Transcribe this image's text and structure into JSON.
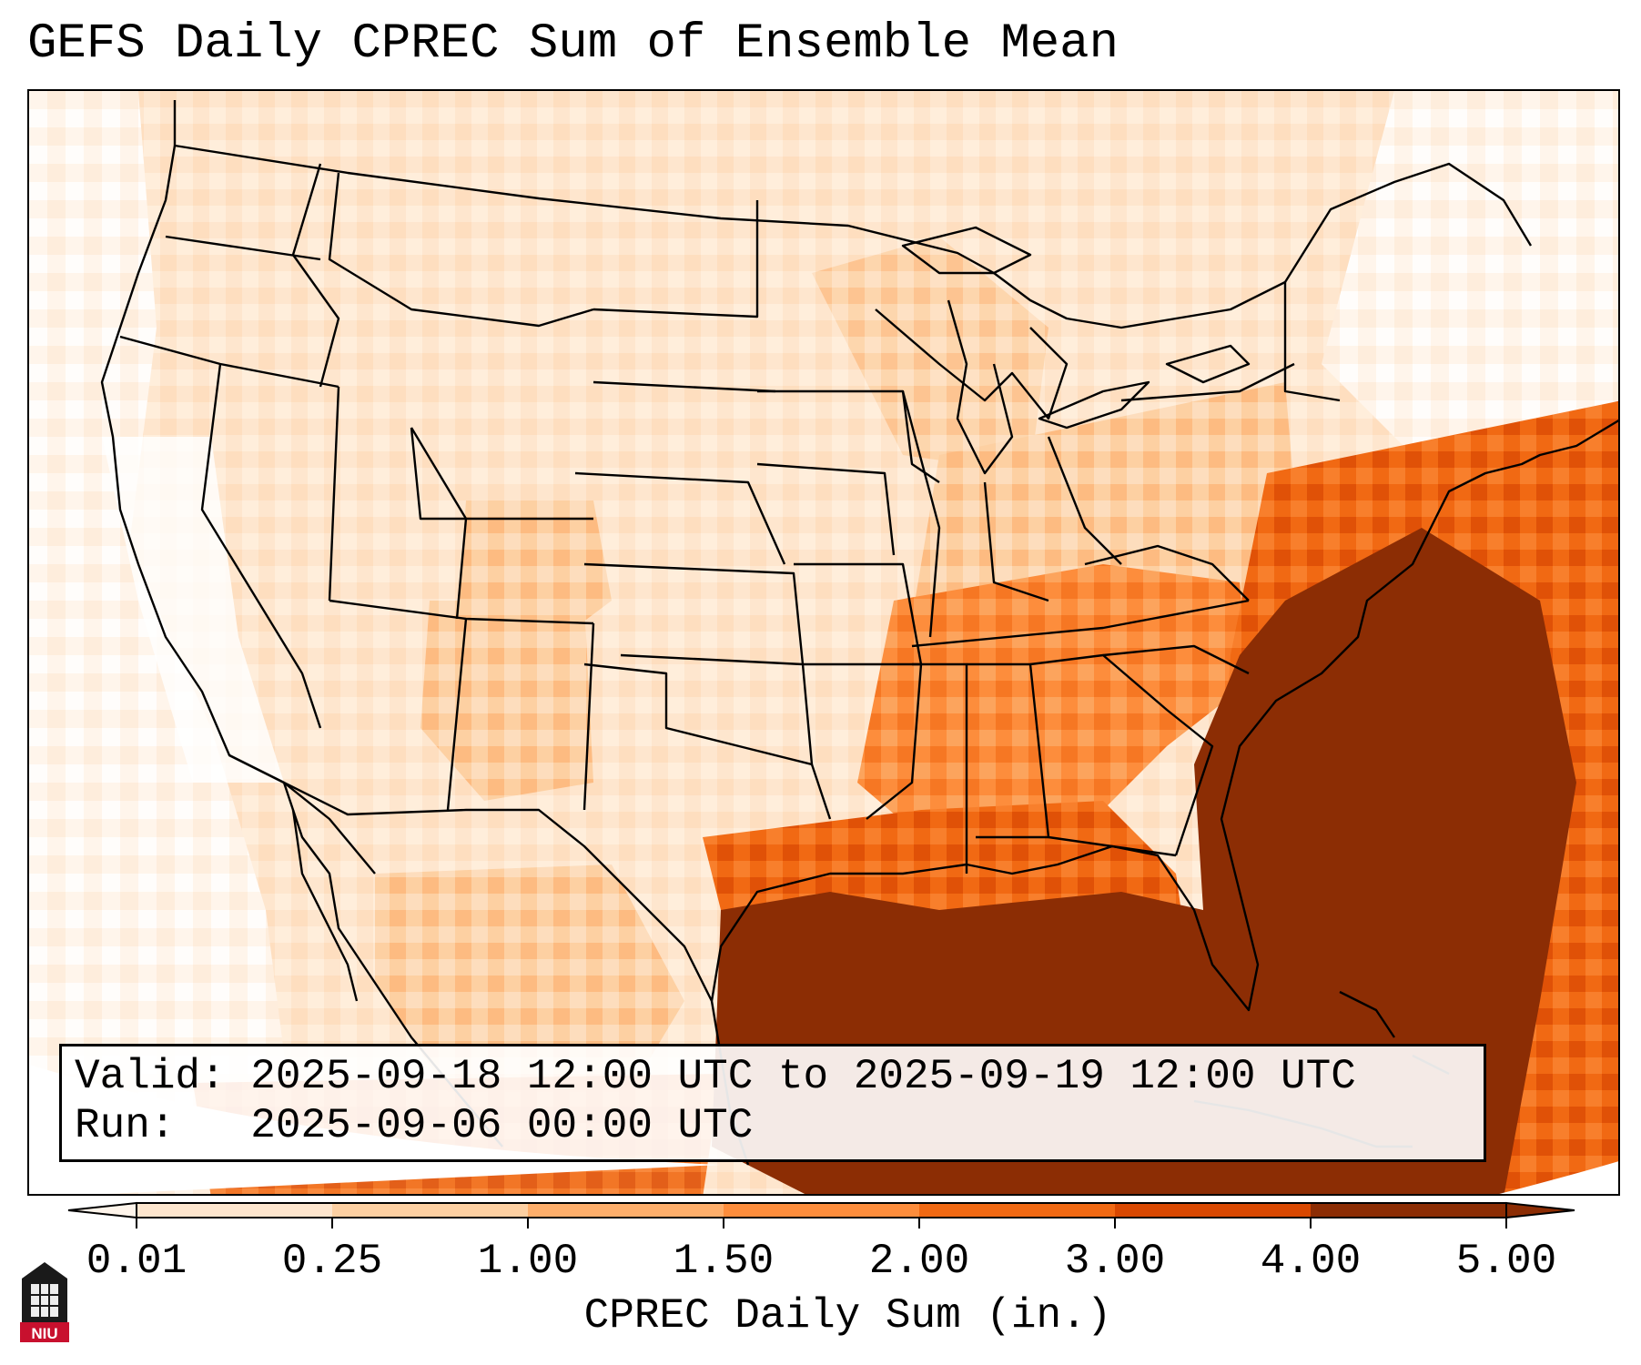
{
  "title": "GEFS Daily CPREC Sum of Ensemble Mean",
  "info": {
    "valid_label": "Valid:",
    "valid_value": "2025-09-18 12:00 UTC to 2025-09-19 12:00 UTC",
    "run_label": "Run:",
    "run_value": "2025-09-06 00:00 UTC"
  },
  "colorbar": {
    "label": "CPREC Daily Sum (in.)",
    "ticks": [
      "0.01",
      "0.25",
      "1.00",
      "1.50",
      "2.00",
      "3.00",
      "4.00",
      "5.00"
    ],
    "colors": [
      "#fff5eb",
      "#fee6ce",
      "#fdd0a2",
      "#fdae6b",
      "#fd8d3c",
      "#f16913",
      "#d94801",
      "#8c2d04"
    ],
    "extend": "both"
  },
  "logo": {
    "text": "NIU"
  },
  "colors": {
    "lightest": "#fff5eb",
    "light": "#fee6ce",
    "light_mid": "#fdd0a2",
    "mid": "#fdae6b",
    "orange": "#fd8d3c",
    "dark_orange": "#f16913",
    "red_orange": "#d94801",
    "brown": "#8c2d04"
  }
}
